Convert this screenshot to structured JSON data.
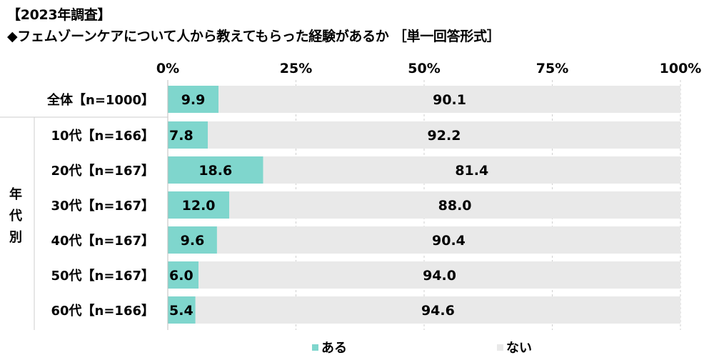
{
  "title_lines": [
    "【2023年調査】",
    "◆フェムゾーンケアについて人から教えてもらった経験があるか ［単一回答形式］"
  ],
  "group_label": [
    "年",
    "代",
    "別"
  ],
  "chart_data": {
    "type": "bar",
    "orientation": "horizontal",
    "stacked": true,
    "percent": true,
    "categories": [
      "全体【n=1000】",
      "10代【n=166】",
      "20代【n=167】",
      "30代【n=167】",
      "40代【n=167】",
      "50代【n=167】",
      "60代【n=166】"
    ],
    "series": [
      {
        "name": "ある",
        "color": "#7fd6cd",
        "values": [
          9.9,
          7.8,
          18.6,
          12.0,
          9.6,
          6.0,
          5.4
        ]
      },
      {
        "name": "ない",
        "color": "#e9e9e9",
        "values": [
          90.1,
          92.2,
          81.4,
          88.0,
          90.4,
          94.0,
          94.6
        ]
      }
    ],
    "x_ticks": [
      "0%",
      "25%",
      "50%",
      "75%",
      "100%"
    ],
    "xlim": [
      0,
      100
    ],
    "grid": true,
    "legend": "bottom"
  }
}
